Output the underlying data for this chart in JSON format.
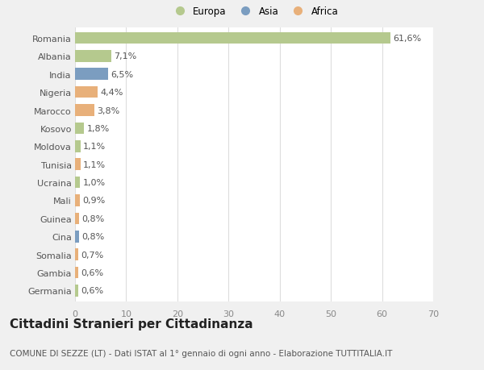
{
  "countries": [
    "Romania",
    "Albania",
    "India",
    "Nigeria",
    "Marocco",
    "Kosovo",
    "Moldova",
    "Tunisia",
    "Ucraina",
    "Mali",
    "Guinea",
    "Cina",
    "Somalia",
    "Gambia",
    "Germania"
  ],
  "values": [
    61.6,
    7.1,
    6.5,
    4.4,
    3.8,
    1.8,
    1.1,
    1.1,
    1.0,
    0.9,
    0.8,
    0.8,
    0.7,
    0.6,
    0.6
  ],
  "labels": [
    "61,6%",
    "7,1%",
    "6,5%",
    "4,4%",
    "3,8%",
    "1,8%",
    "1,1%",
    "1,1%",
    "1,0%",
    "0,9%",
    "0,8%",
    "0,8%",
    "0,7%",
    "0,6%",
    "0,6%"
  ],
  "continents": [
    "Europa",
    "Europa",
    "Asia",
    "Africa",
    "Africa",
    "Europa",
    "Europa",
    "Africa",
    "Europa",
    "Africa",
    "Africa",
    "Asia",
    "Africa",
    "Africa",
    "Europa"
  ],
  "colors": {
    "Europa": "#b5c98e",
    "Asia": "#7b9dc0",
    "Africa": "#e8b07a"
  },
  "xlim": [
    0,
    70
  ],
  "xticks": [
    0,
    10,
    20,
    30,
    40,
    50,
    60,
    70
  ],
  "background_color": "#f0f0f0",
  "plot_bg_color": "#ffffff",
  "grid_color": "#dddddd",
  "title": "Cittadini Stranieri per Cittadinanza",
  "subtitle": "COMUNE DI SEZZE (LT) - Dati ISTAT al 1° gennaio di ogni anno - Elaborazione TUTTITALIA.IT",
  "bar_height": 0.65,
  "label_fontsize": 8,
  "tick_fontsize": 8,
  "title_fontsize": 11,
  "subtitle_fontsize": 7.5
}
